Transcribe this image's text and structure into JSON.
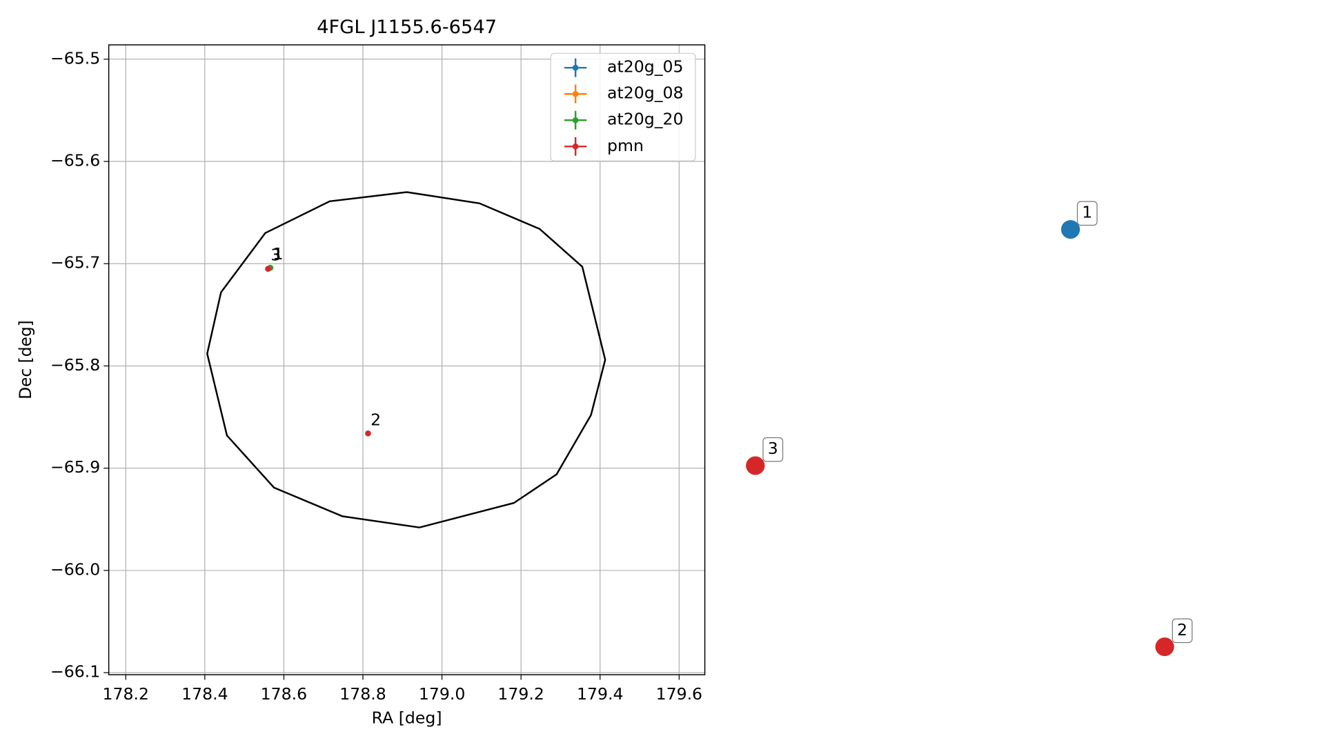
{
  "chart_data": {
    "type": "scatter",
    "title": "4FGL J1155.6-6547",
    "xlabel": "RA [deg]",
    "ylabel": "Dec [deg]",
    "xlim": [
      178.157,
      179.665
    ],
    "ylim": [
      -66.102,
      -65.486
    ],
    "xticks": [
      178.2,
      178.4,
      178.6,
      178.8,
      {
        "value": 179,
        "label": "179.0"
      },
      179.2,
      179.4,
      179.6
    ],
    "yticks": [
      {
        "value": -65.5,
        "label": "−65.5"
      },
      {
        "value": -65.6,
        "label": "−65.6"
      },
      {
        "value": -65.7,
        "label": "−65.7"
      },
      {
        "value": -65.8,
        "label": "−65.8"
      },
      {
        "value": -65.9,
        "label": "−65.9"
      },
      {
        "value": -66.0,
        "label": "−66.0"
      },
      {
        "value": -66.1,
        "label": "−66.1"
      }
    ],
    "grid": true,
    "legend": "upper right",
    "ellipse": {
      "color": "#000000",
      "x": [
        178.911,
        179.095,
        179.247,
        179.355,
        179.413,
        179.377,
        179.29,
        179.182,
        178.943,
        178.748,
        178.575,
        178.456,
        178.406,
        178.441,
        178.553,
        178.716,
        178.911
      ],
      "y": [
        -65.63,
        -65.641,
        -65.666,
        -65.703,
        -65.794,
        -65.848,
        -65.906,
        -65.934,
        -65.958,
        -65.947,
        -65.919,
        -65.868,
        -65.788,
        -65.728,
        -65.67,
        -65.639,
        -65.63
      ]
    },
    "series": [
      {
        "name": "at20g_05",
        "color": "#1f77b4",
        "x": [
          178.565
        ],
        "y": [
          -65.704
        ],
        "point_labels": [
          "1"
        ]
      },
      {
        "name": "at20g_08",
        "color": "#ff7f0e",
        "x": [
          178.565
        ],
        "y": [
          -65.704
        ],
        "point_labels": [
          "1"
        ]
      },
      {
        "name": "at20g_20",
        "color": "#2ca02c",
        "x": [
          178.566
        ],
        "y": [
          -65.704
        ],
        "point_labels": [
          "1"
        ]
      },
      {
        "name": "pmn",
        "color": "#d62728",
        "x": [
          178.56,
          178.813
        ],
        "y": [
          -65.705,
          -65.866
        ],
        "point_labels": [
          "3",
          "2"
        ]
      }
    ]
  },
  "side_markers": [
    {
      "label": "1",
      "color": "#1f77b4"
    },
    {
      "label": "3",
      "color": "#d62728"
    },
    {
      "label": "2",
      "color": "#d62728"
    }
  ]
}
